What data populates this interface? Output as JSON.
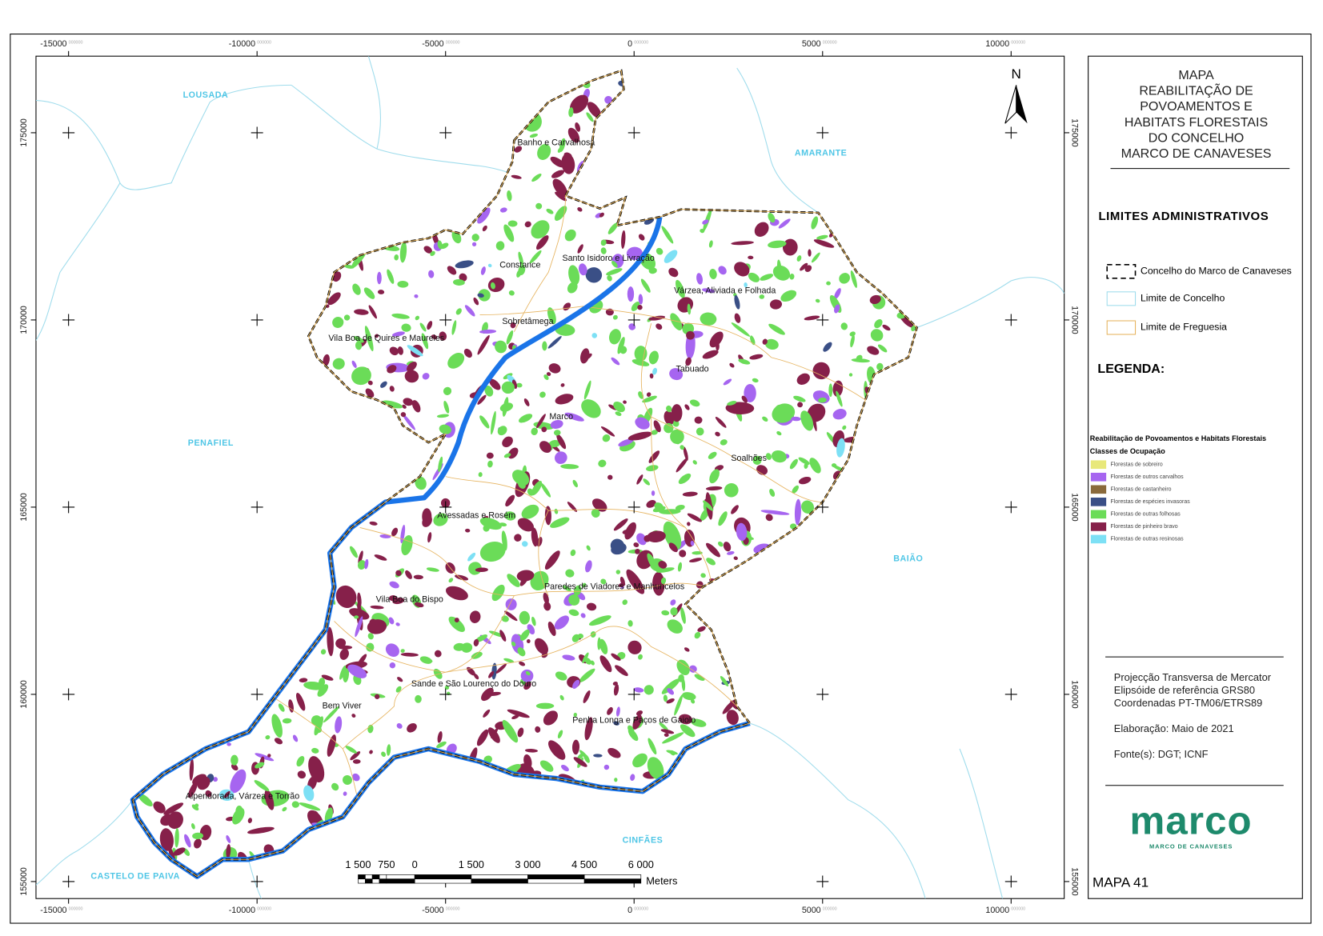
{
  "title_lines": [
    "MAPA",
    "REABILITAÇÃO DE",
    "POVOAMENTOS E",
    "HABITATS FLORESTAIS",
    "DO CONCELHO",
    "MARCO DE CANAVESES"
  ],
  "admin_limits": {
    "heading": "LIMITES ADMINISTRATIVOS",
    "items": [
      "Concelho do Marco de Canaveses",
      "Limite de Concelho",
      "Limite de Freguesia"
    ]
  },
  "legend": {
    "heading": "LEGENDA:",
    "subtitle": "Reabilitação de Povoamentos e Habitats Florestais",
    "classes_heading": "Classes de Ocupação",
    "classes": [
      {
        "label": "Florestas de sobreiro",
        "color": "#e8e87a"
      },
      {
        "label": "Florestas de outros carvalhos",
        "color": "#a665f0"
      },
      {
        "label": "Florestas de castanheiro",
        "color": "#8a6a3c"
      },
      {
        "label": "Florestas de espécies invasoras",
        "color": "#3a4f86"
      },
      {
        "label": "Florestas de outras folhosas",
        "color": "#6bdc58"
      },
      {
        "label": "Florestas de pinheiro bravo",
        "color": "#86204a"
      },
      {
        "label": "Florestas de outras resinosas",
        "color": "#7de0f5"
      }
    ]
  },
  "notes": [
    "Projecção Transversa de Mercator",
    "Elipsóide de referência GRS80",
    "Coordenadas PT-TM06/ETRS89",
    "Elaboração: Maio de 2021",
    "Fonte(s): DGT; ICNF"
  ],
  "logo": {
    "name": "marco",
    "tagline": "MARCO DE CANAVESES"
  },
  "map_number": "MAPA 41",
  "north": "N",
  "grid": {
    "x_labels": [
      "-15000",
      "-10000",
      "-5000",
      "0",
      "5000",
      "10000"
    ],
    "y_labels": [
      "175000",
      "170000",
      "165000",
      "160000",
      "155000"
    ],
    "suffix": "000000"
  },
  "scale": {
    "labels": [
      "1 500",
      "750",
      "0",
      "1 500",
      "3 000",
      "4 500",
      "6 000"
    ],
    "unit": "Meters"
  },
  "neighbors": [
    "LOUSADA",
    "AMARANTE",
    "PENAFIEL",
    "BAIÃO",
    "CINFÃES",
    "CASTELO DE PAIVA"
  ],
  "parishes": [
    "Banho e Carvalhosa",
    "Constance",
    "Santo Isidoro e Livração",
    "Várzea, Aliviada e Folhada",
    "Sobretâmega",
    "Vila Boa de Quires e Maureles",
    "Tabuado",
    "Marco",
    "Soalhões",
    "Avessadas e Rosém",
    "Paredes de Viadores e Manhuncelos",
    "Vila Boa do Bispo",
    "Sande e São Lourenço do Douro",
    "Bem Viver",
    "Penha Longa e Paços de Gaiolo",
    "Alpendorada, Várzea e Torrão"
  ]
}
